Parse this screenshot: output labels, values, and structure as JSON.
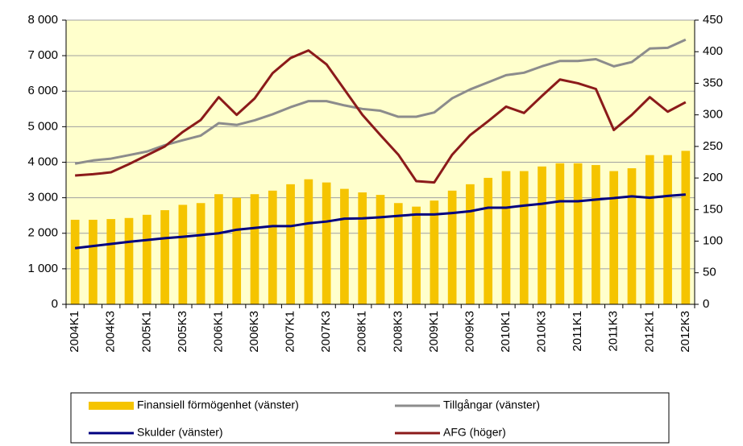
{
  "chart_data": {
    "type": "bar",
    "categories": [
      "2004K1",
      null,
      "2004K3",
      null,
      "2005K1",
      null,
      "2005K3",
      null,
      "2006K1",
      null,
      "2006K3",
      null,
      "2007K1",
      null,
      "2007K3",
      null,
      "2008K1",
      null,
      "2008K3",
      null,
      "2009K1",
      null,
      "2009K3",
      null,
      "2010K1",
      null,
      "2010K3",
      null,
      "2011K1",
      null,
      "2011K3",
      null,
      "2012K1",
      null,
      "2012K3"
    ],
    "series": [
      {
        "name": "Finansiell förmögenhet (vänster)",
        "type": "bar",
        "color": "#f5c400",
        "values": [
          2380,
          2380,
          2400,
          2430,
          2520,
          2650,
          2800,
          2850,
          3100,
          3000,
          3100,
          3200,
          3380,
          3520,
          3430,
          3250,
          3150,
          3080,
          2850,
          2750,
          2920,
          3200,
          3380,
          3560,
          3750,
          3750,
          3880,
          3970,
          3970,
          3920,
          3750,
          3830,
          4200,
          4200,
          4320
        ]
      },
      {
        "name": "Tillgångar (vänster)",
        "type": "line",
        "color": "#8c8c8c",
        "values": [
          3960,
          4050,
          4100,
          4200,
          4300,
          4480,
          4620,
          4750,
          5100,
          5050,
          5180,
          5350,
          5550,
          5720,
          5720,
          5600,
          5500,
          5450,
          5280,
          5280,
          5400,
          5800,
          6050,
          6250,
          6450,
          6520,
          6700,
          6850,
          6850,
          6900,
          6700,
          6820,
          7200,
          7220,
          7450
        ]
      },
      {
        "name": "Skulder (vänster)",
        "type": "line",
        "color": "#000080",
        "values": [
          1580,
          1640,
          1700,
          1760,
          1810,
          1860,
          1900,
          1950,
          2000,
          2100,
          2150,
          2200,
          2200,
          2280,
          2330,
          2410,
          2420,
          2450,
          2490,
          2530,
          2530,
          2570,
          2620,
          2720,
          2720,
          2780,
          2830,
          2900,
          2900,
          2950,
          2990,
          3040,
          3000,
          3050,
          3090
        ]
      },
      {
        "name": "AFG (höger)",
        "type": "line",
        "color": "#8b1a1a",
        "axis": "y2",
        "values": [
          204,
          206,
          209,
          222,
          236,
          250,
          273,
          292,
          328,
          300,
          326,
          366,
          390,
          402,
          380,
          340,
          300,
          268,
          237,
          195,
          193,
          237,
          268,
          290,
          313,
          303,
          330,
          356,
          350,
          341,
          276,
          300,
          328,
          305,
          320
        ]
      }
    ],
    "ylim": [
      0,
      8000
    ],
    "yticks": [
      0,
      {
        "value": 1000,
        "label": "1 000"
      },
      {
        "value": 2000,
        "label": "2 000"
      },
      {
        "value": 3000,
        "label": "3 000"
      },
      {
        "value": 4000,
        "label": "4 000"
      },
      {
        "value": 5000,
        "label": "5 000"
      },
      {
        "value": 6000,
        "label": "6 000"
      },
      {
        "value": 7000,
        "label": "7 000"
      },
      {
        "value": 8000,
        "label": "8 000"
      }
    ],
    "y2lim": [
      0,
      450
    ],
    "y2ticks": [
      0,
      50,
      100,
      150,
      200,
      250,
      300,
      350,
      400,
      450
    ],
    "grid": true,
    "legend": "bottom",
    "background": "#ffffcc"
  }
}
